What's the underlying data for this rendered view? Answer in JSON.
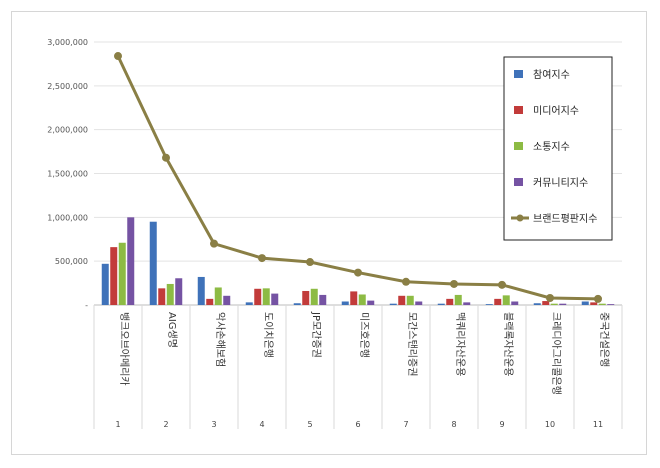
{
  "chart_data": {
    "type": "bar",
    "title": "",
    "xlabel": "",
    "ylabel": "",
    "ylim": [
      0,
      3000000
    ],
    "y_ticks": [
      "-",
      "500,000",
      "1,000,000",
      "1,500,000",
      "2,000,000",
      "2,500,000",
      "3,000,000"
    ],
    "grid": true,
    "legend_position": "right",
    "category_numbers": [
      "1",
      "2",
      "3",
      "4",
      "5",
      "6",
      "7",
      "8",
      "9",
      "10",
      "11"
    ],
    "categories": [
      "뱅크오브아메리카",
      "AIG생명",
      "악사손해보험",
      "도이치은행",
      "JP모간증권",
      "미즈호은행",
      "모간스탠리증권",
      "맥쿼리자산운용",
      "블랙록자산운용",
      "크레디아그리콜은행",
      "중국건설은행"
    ],
    "series": [
      {
        "name": "참여지수",
        "kind": "bar",
        "color": "#3f72b9",
        "values": [
          470000,
          950000,
          320000,
          30000,
          20000,
          40000,
          15000,
          15000,
          10000,
          20000,
          40000
        ]
      },
      {
        "name": "미디어지수",
        "kind": "bar",
        "color": "#c23b3a",
        "values": [
          660000,
          190000,
          70000,
          185000,
          160000,
          155000,
          105000,
          70000,
          70000,
          45000,
          30000
        ]
      },
      {
        "name": "소통지수",
        "kind": "bar",
        "color": "#8dbb44",
        "values": [
          710000,
          240000,
          200000,
          190000,
          185000,
          120000,
          105000,
          115000,
          110000,
          15000,
          15000
        ]
      },
      {
        "name": "커뮤니티지수",
        "kind": "bar",
        "color": "#7553a3",
        "values": [
          1000000,
          305000,
          105000,
          130000,
          115000,
          50000,
          40000,
          30000,
          40000,
          15000,
          10000
        ]
      },
      {
        "name": "브랜드평판지수",
        "kind": "line",
        "color": "#8a7f45",
        "values": [
          2840000,
          1680000,
          700000,
          535000,
          490000,
          370000,
          265000,
          240000,
          230000,
          80000,
          70000
        ]
      }
    ]
  }
}
